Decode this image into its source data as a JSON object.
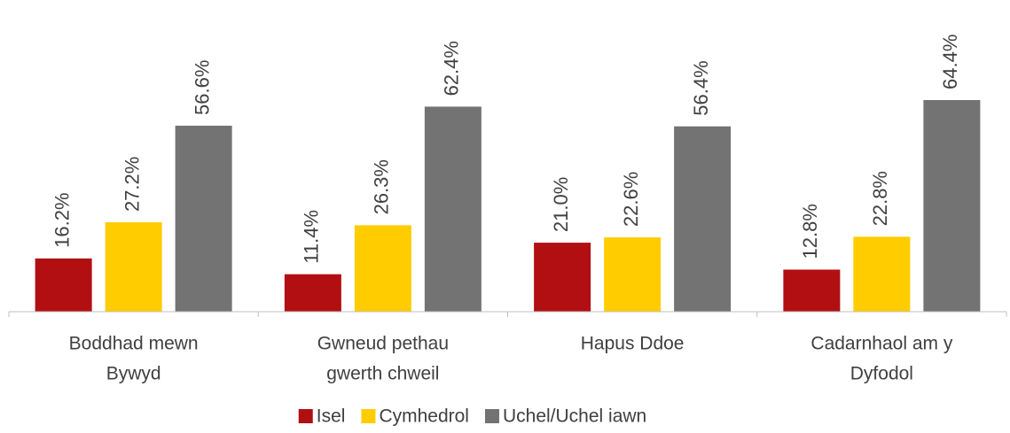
{
  "chart_data": {
    "type": "bar",
    "categories": [
      [
        "Boddhad mewn",
        "Bywyd"
      ],
      [
        "Gwneud pethau",
        "gwerth chweil"
      ],
      [
        "Hapus Ddoe"
      ],
      [
        "Cadarnhaol am y",
        "Dyfodol"
      ]
    ],
    "series": [
      {
        "name": "Isel",
        "color": "#b20f13",
        "values": [
          16.2,
          11.4,
          21.0,
          12.8
        ],
        "value_labels": [
          "16.2%",
          "11.4%",
          "21.0%",
          "12.8%"
        ]
      },
      {
        "name": "Cymhedrol",
        "color": "#ffcc00",
        "values": [
          27.2,
          26.3,
          22.6,
          22.8
        ],
        "value_labels": [
          "27.2%",
          "26.3%",
          "22.6%",
          "22.8%"
        ]
      },
      {
        "name": "Uchel/Uchel iawn",
        "color": "#737373",
        "values": [
          56.6,
          62.4,
          56.4,
          64.4
        ],
        "value_labels": [
          "56.6%",
          "62.4%",
          "56.4%",
          "64.4%"
        ]
      }
    ],
    "ylim": [
      0,
      90
    ],
    "legend": "bottom"
  }
}
